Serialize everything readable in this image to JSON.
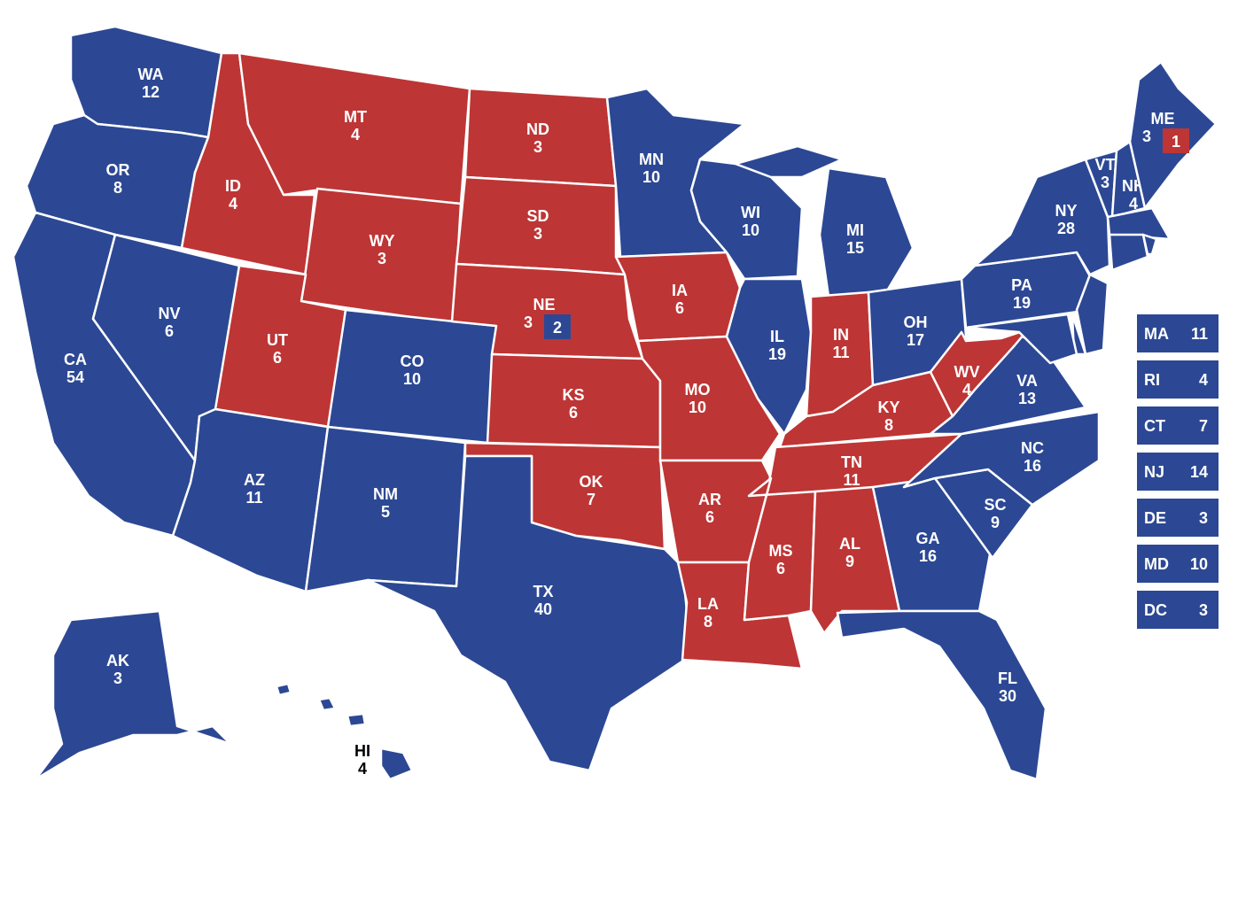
{
  "colors": {
    "dem": "#2c4894",
    "rep": "#be3535",
    "border": "#ffffff"
  },
  "states": [
    {
      "abbr": "WA",
      "votes": "12",
      "party": "dem"
    },
    {
      "abbr": "OR",
      "votes": "8",
      "party": "dem"
    },
    {
      "abbr": "CA",
      "votes": "54",
      "party": "dem"
    },
    {
      "abbr": "NV",
      "votes": "6",
      "party": "dem"
    },
    {
      "abbr": "ID",
      "votes": "4",
      "party": "rep"
    },
    {
      "abbr": "MT",
      "votes": "4",
      "party": "rep"
    },
    {
      "abbr": "WY",
      "votes": "3",
      "party": "rep"
    },
    {
      "abbr": "UT",
      "votes": "6",
      "party": "rep"
    },
    {
      "abbr": "AZ",
      "votes": "11",
      "party": "dem"
    },
    {
      "abbr": "CO",
      "votes": "10",
      "party": "dem"
    },
    {
      "abbr": "NM",
      "votes": "5",
      "party": "dem"
    },
    {
      "abbr": "ND",
      "votes": "3",
      "party": "rep"
    },
    {
      "abbr": "SD",
      "votes": "3",
      "party": "rep"
    },
    {
      "abbr": "NE",
      "votes": "3",
      "party": "rep"
    },
    {
      "abbr": "KS",
      "votes": "6",
      "party": "rep"
    },
    {
      "abbr": "OK",
      "votes": "7",
      "party": "rep"
    },
    {
      "abbr": "TX",
      "votes": "40",
      "party": "dem"
    },
    {
      "abbr": "MN",
      "votes": "10",
      "party": "dem"
    },
    {
      "abbr": "IA",
      "votes": "6",
      "party": "rep"
    },
    {
      "abbr": "MO",
      "votes": "10",
      "party": "rep"
    },
    {
      "abbr": "AR",
      "votes": "6",
      "party": "rep"
    },
    {
      "abbr": "LA",
      "votes": "8",
      "party": "rep"
    },
    {
      "abbr": "WI",
      "votes": "10",
      "party": "dem"
    },
    {
      "abbr": "IL",
      "votes": "19",
      "party": "dem"
    },
    {
      "abbr": "MI",
      "votes": "15",
      "party": "dem"
    },
    {
      "abbr": "IN",
      "votes": "11",
      "party": "rep"
    },
    {
      "abbr": "OH",
      "votes": "17",
      "party": "dem"
    },
    {
      "abbr": "KY",
      "votes": "8",
      "party": "rep"
    },
    {
      "abbr": "TN",
      "votes": "11",
      "party": "rep"
    },
    {
      "abbr": "MS",
      "votes": "6",
      "party": "rep"
    },
    {
      "abbr": "AL",
      "votes": "9",
      "party": "rep"
    },
    {
      "abbr": "GA",
      "votes": "16",
      "party": "dem"
    },
    {
      "abbr": "FL",
      "votes": "30",
      "party": "dem"
    },
    {
      "abbr": "SC",
      "votes": "9",
      "party": "dem"
    },
    {
      "abbr": "NC",
      "votes": "16",
      "party": "dem"
    },
    {
      "abbr": "VA",
      "votes": "13",
      "party": "dem"
    },
    {
      "abbr": "WV",
      "votes": "4",
      "party": "rep"
    },
    {
      "abbr": "PA",
      "votes": "19",
      "party": "dem"
    },
    {
      "abbr": "NY",
      "votes": "28",
      "party": "dem"
    },
    {
      "abbr": "VT",
      "votes": "3",
      "party": "dem"
    },
    {
      "abbr": "NH",
      "votes": "4",
      "party": "dem"
    },
    {
      "abbr": "ME",
      "votes": "3",
      "party": "dem"
    },
    {
      "abbr": "MA",
      "votes": "11",
      "party": "dem"
    },
    {
      "abbr": "CT",
      "votes": "7",
      "party": "dem"
    },
    {
      "abbr": "RI",
      "votes": "4",
      "party": "dem"
    },
    {
      "abbr": "NJ",
      "votes": "14",
      "party": "dem"
    },
    {
      "abbr": "DE",
      "votes": "3",
      "party": "dem"
    },
    {
      "abbr": "MD",
      "votes": "10",
      "party": "dem"
    },
    {
      "abbr": "AK",
      "votes": "3",
      "party": "dem"
    },
    {
      "abbr": "HI",
      "votes": "4",
      "party": "dem"
    }
  ],
  "district_splits": [
    {
      "state": "ME",
      "votes": "1",
      "party": "rep"
    },
    {
      "state": "NE",
      "votes": "2",
      "party": "dem"
    }
  ],
  "callouts": [
    {
      "abbr": "MA",
      "votes": "11",
      "party": "dem"
    },
    {
      "abbr": "RI",
      "votes": "4",
      "party": "dem"
    },
    {
      "abbr": "CT",
      "votes": "7",
      "party": "dem"
    },
    {
      "abbr": "NJ",
      "votes": "14",
      "party": "dem"
    },
    {
      "abbr": "DE",
      "votes": "3",
      "party": "dem"
    },
    {
      "abbr": "MD",
      "votes": "10",
      "party": "dem"
    },
    {
      "abbr": "DC",
      "votes": "3",
      "party": "dem"
    }
  ]
}
